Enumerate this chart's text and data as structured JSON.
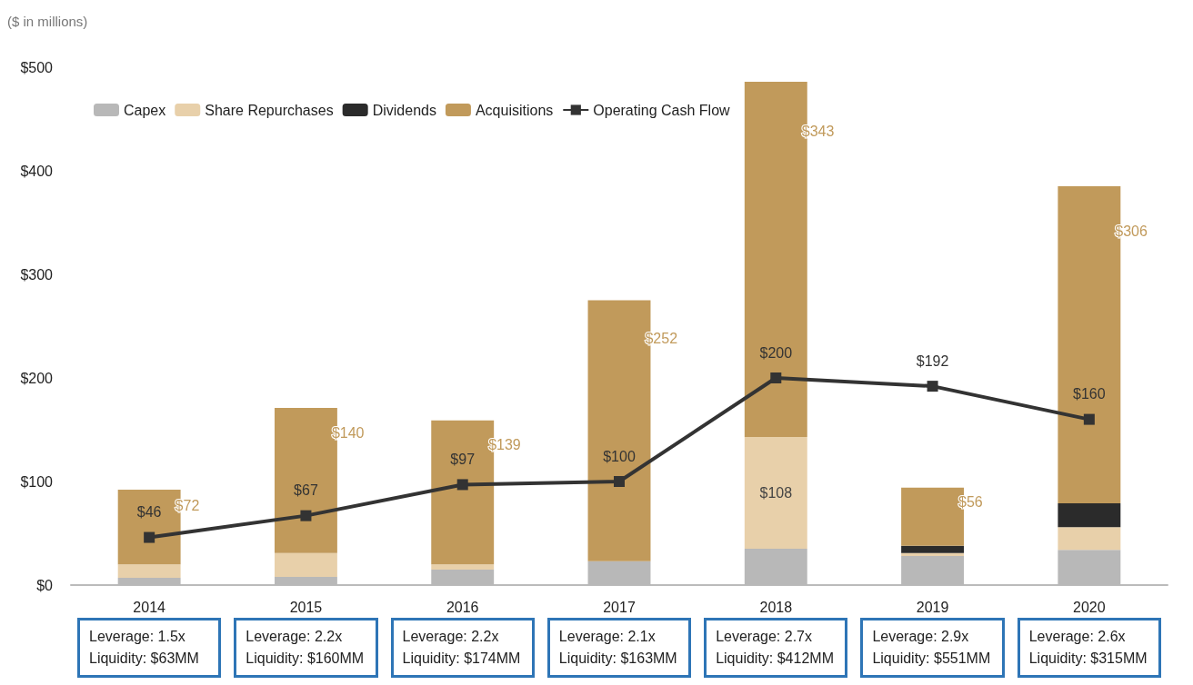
{
  "chart_data": {
    "type": "bar",
    "stacked": true,
    "ylabel": "($ in millions)",
    "categories": [
      "2014",
      "2015",
      "2016",
      "2017",
      "2018",
      "2019",
      "2020"
    ],
    "series": [
      {
        "name": "Capex",
        "color": "#b8b8b8",
        "values": [
          7,
          8,
          15,
          23,
          35,
          28,
          34
        ]
      },
      {
        "name": "Share Repurchases",
        "color": "#e8d0aa",
        "values": [
          13,
          23,
          5,
          0,
          108,
          3,
          22
        ],
        "value_labels": [
          null,
          null,
          null,
          null,
          "$108",
          null,
          null
        ]
      },
      {
        "name": "Dividends",
        "color": "#2b2b2b",
        "values": [
          0,
          0,
          0,
          0,
          0,
          7,
          23
        ]
      },
      {
        "name": "Acquisitions",
        "color": "#c19a5b",
        "values": [
          72,
          140,
          139,
          252,
          343,
          56,
          306
        ],
        "value_labels": [
          "$72",
          "$140",
          "$139",
          "$252",
          "$343",
          "$56",
          "$306"
        ]
      },
      {
        "name": "Operating Cash Flow",
        "type": "line",
        "color": "#333333",
        "marker": "square",
        "values": [
          46,
          67,
          97,
          100,
          200,
          192,
          160
        ],
        "value_labels": [
          "$46",
          "$67",
          "$97",
          "$100",
          "$200",
          "$192",
          "$160"
        ]
      }
    ],
    "ylim": [
      0,
      500
    ],
    "yticks": [
      {
        "value": 0,
        "label": "$0"
      },
      {
        "value": 100,
        "label": "$100"
      },
      {
        "value": 200,
        "label": "$200"
      },
      {
        "value": 300,
        "label": "$300"
      },
      {
        "value": 400,
        "label": "$400"
      },
      {
        "value": 500,
        "label": "$500"
      }
    ],
    "grid": false,
    "legend": "top left",
    "annotations": [
      "Leverage: 1.5x\nLiquidity: $63MM",
      "Leverage: 2.2x\nLiquidity: $160MM",
      "Leverage: 2.2x\nLiquidity: $174MM",
      "Leverage: 2.1x\nLiquidity: $163MM",
      "Leverage: 2.7x\nLiquidity: $412MM",
      "Leverage: 2.9x\nLiquidity: $551MM",
      "Leverage: 2.6x\nLiquidity: $315MM"
    ]
  }
}
